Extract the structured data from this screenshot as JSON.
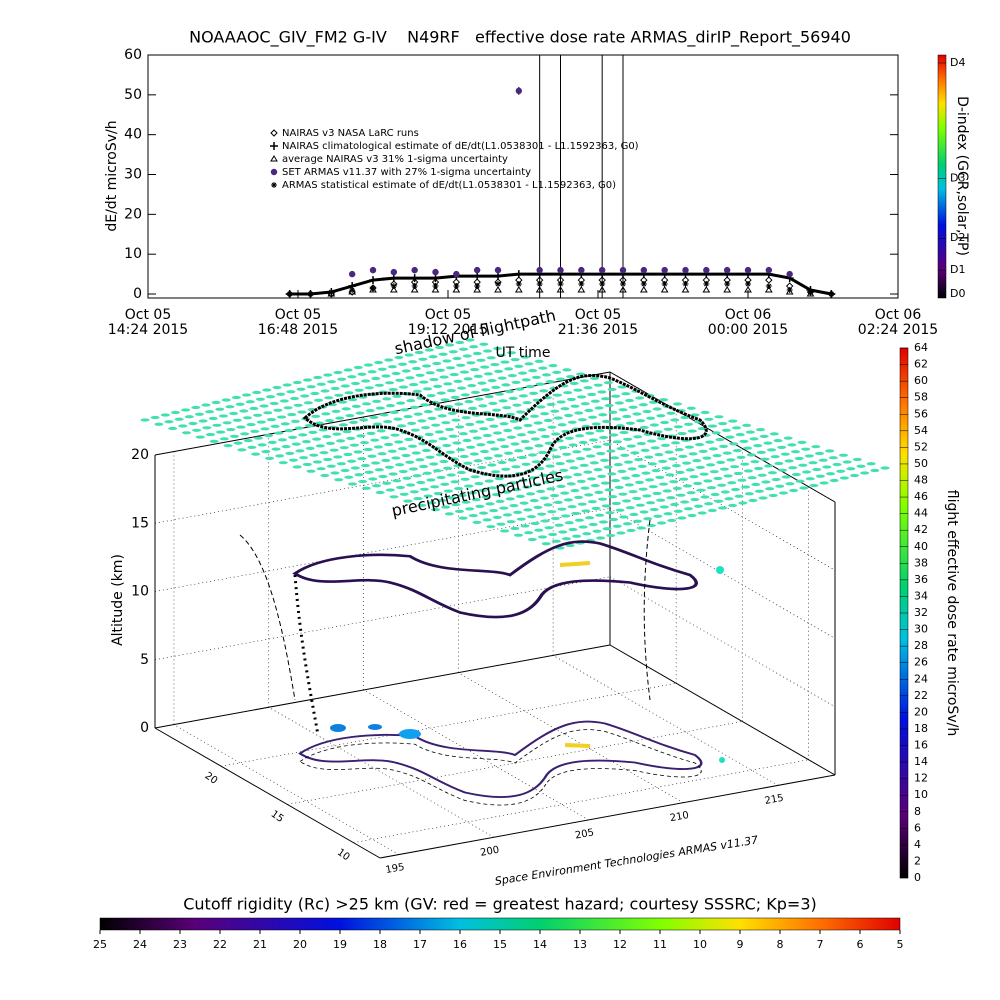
{
  "chart_data": [
    {
      "type": "scatter",
      "title": "NOAAAOC_GIV_FM2 G-IV    N49RF   effective dose rate ARMAS_dirIP_Report_56940",
      "xlabel": "UT time",
      "ylabel": "dE/dt microSv/h",
      "xlim": [
        "2015-10-05T14:24",
        "2015-10-06T02:24"
      ],
      "xticks": [
        {
          "value": "2015-10-05T14:24",
          "label": [
            "Oct 05",
            "14:24 2015"
          ]
        },
        {
          "value": "2015-10-05T16:48",
          "label": [
            "Oct 05",
            "16:48 2015"
          ]
        },
        {
          "value": "2015-10-05T19:12",
          "label": [
            "Oct 05",
            "19:12 2015"
          ]
        },
        {
          "value": "2015-10-05T21:36",
          "label": [
            "Oct 05",
            "21:36 2015"
          ]
        },
        {
          "value": "2015-10-06T00:00",
          "label": [
            "Oct 06",
            "00:00 2015"
          ]
        },
        {
          "value": "2015-10-06T02:24",
          "label": [
            "Oct 06",
            "02:24 2015"
          ]
        }
      ],
      "ylim": [
        -1,
        60
      ],
      "yticks": [
        0,
        10,
        20,
        30,
        40,
        50,
        60
      ],
      "x": [
        "2015-10-05T16:40",
        "2015-10-05T17:00",
        "2015-10-05T17:20",
        "2015-10-05T17:40",
        "2015-10-05T18:00",
        "2015-10-05T18:20",
        "2015-10-05T18:40",
        "2015-10-05T19:00",
        "2015-10-05T19:20",
        "2015-10-05T19:40",
        "2015-10-05T20:00",
        "2015-10-05T20:20",
        "2015-10-05T20:40",
        "2015-10-05T21:00",
        "2015-10-05T21:20",
        "2015-10-05T21:40",
        "2015-10-05T22:00",
        "2015-10-05T22:20",
        "2015-10-05T22:40",
        "2015-10-05T23:00",
        "2015-10-05T23:20",
        "2015-10-05T23:40",
        "2015-10-06T00:00",
        "2015-10-06T00:20",
        "2015-10-06T00:40",
        "2015-10-06T01:00",
        "2015-10-06T01:20"
      ],
      "series": [
        {
          "name": "NAIRAS v3 NASA LaRC runs",
          "marker": "diamond",
          "color": "#000000",
          "values": [
            0,
            0,
            0,
            0.5,
            1.5,
            2.5,
            3,
            3,
            3,
            3,
            3,
            3.5,
            3.5,
            3.5,
            3.5,
            3.5,
            3.5,
            3.5,
            3.5,
            3.5,
            3.5,
            3.5,
            3.5,
            3.5,
            2,
            0.5,
            0
          ]
        },
        {
          "name": "NAIRAS climatological estimate of dE/dt(L1.0538301 - L1.1592363, G0)",
          "marker": "plus",
          "color": "#000000",
          "line": true,
          "values": [
            0,
            0,
            0.5,
            2,
            3.5,
            4,
            4,
            4,
            4.5,
            4.5,
            4.5,
            5,
            5,
            5,
            5,
            5,
            5,
            5,
            5,
            5,
            5,
            5,
            5,
            5,
            4,
            1,
            0
          ]
        },
        {
          "name": "average NAIRAS v3 31% 1-sigma uncertainty",
          "marker": "triangle",
          "color": "#000000",
          "values": [
            null,
            null,
            0,
            0.5,
            1,
            1,
            1,
            1,
            1,
            1,
            1,
            1,
            1,
            1,
            1,
            1,
            1,
            1,
            1,
            1,
            1,
            1,
            1,
            1,
            0.5,
            0,
            null
          ]
        },
        {
          "name": "SET ARMAS v11.37 with 27% 1-sigma uncertainty",
          "marker": "circle",
          "color": "#4b2880",
          "values": [
            null,
            null,
            null,
            5,
            6,
            5.5,
            6,
            5.5,
            5,
            6,
            6,
            51,
            6,
            6,
            6,
            6,
            6,
            6,
            6,
            6,
            6,
            6,
            6,
            6,
            5,
            null,
            null
          ],
          "errors": [
            null,
            null,
            null,
            0.5,
            0.5,
            0.5,
            0.5,
            0.5,
            0.5,
            0.5,
            0.5,
            1,
            54,
            54,
            0.5,
            54,
            54,
            0.5,
            0.5,
            0.5,
            0.5,
            0.5,
            0.5,
            0.5,
            0.5,
            null,
            null
          ]
        },
        {
          "name": "ARMAS statistical estimate of dE/dt(L1.0538301 - L1.1592363, G0)",
          "marker": "asterisk",
          "color": "#000000",
          "values": [
            0,
            0,
            0.5,
            1,
            1.5,
            2,
            2,
            2,
            2,
            2,
            2.5,
            2.5,
            2.5,
            2.5,
            2.5,
            2.5,
            2.5,
            2.5,
            2.5,
            2.5,
            2.5,
            2.5,
            2.5,
            2,
            1,
            0.5,
            0
          ]
        }
      ],
      "colorbar": {
        "label": "D-index (GCR,solar,TP)",
        "ticks": [
          {
            "value": 0,
            "label": "D0"
          },
          {
            "value": 6,
            "label": "D1"
          },
          {
            "value": 14,
            "label": "D2"
          },
          {
            "value": 29,
            "label": "D3"
          },
          {
            "value": 58,
            "label": "D4"
          }
        ]
      }
    },
    {
      "type": "scatter3d",
      "annotations": [
        "shadow of flightpath",
        "precipitating particles"
      ],
      "zlabel": "Altitude (km)",
      "xlim": [
        194,
        218
      ],
      "xticks": [
        195,
        200,
        205,
        210,
        215
      ],
      "ylim": [
        8,
        25
      ],
      "yticks": [
        10,
        15,
        20
      ],
      "zlim": [
        0,
        20
      ],
      "zticks": [
        0,
        5,
        10,
        15,
        20
      ],
      "credit": "Space Environment Technologies ARMAS v11.37",
      "colorbar": {
        "label": "flight effective dose rate microSv/h",
        "lim": [
          0,
          64
        ],
        "ticks": [
          0,
          2,
          4,
          6,
          8,
          10,
          12,
          14,
          16,
          18,
          20,
          22,
          24,
          26,
          28,
          30,
          32,
          34,
          36,
          38,
          40,
          42,
          44,
          46,
          48,
          50,
          52,
          54,
          56,
          58,
          60,
          62,
          64
        ]
      },
      "colorbar2": {
        "label": "Cutoff rigidity (Rc) >25 km (GV: red = greatest hazard; courtesy SSSRC; Kp=3)",
        "lim": [
          25,
          5
        ],
        "ticks": [
          25,
          24,
          23,
          22,
          21,
          20,
          19,
          18,
          17,
          16,
          15,
          14,
          13,
          12,
          11,
          10,
          9,
          8,
          7,
          6,
          5
        ]
      }
    }
  ]
}
